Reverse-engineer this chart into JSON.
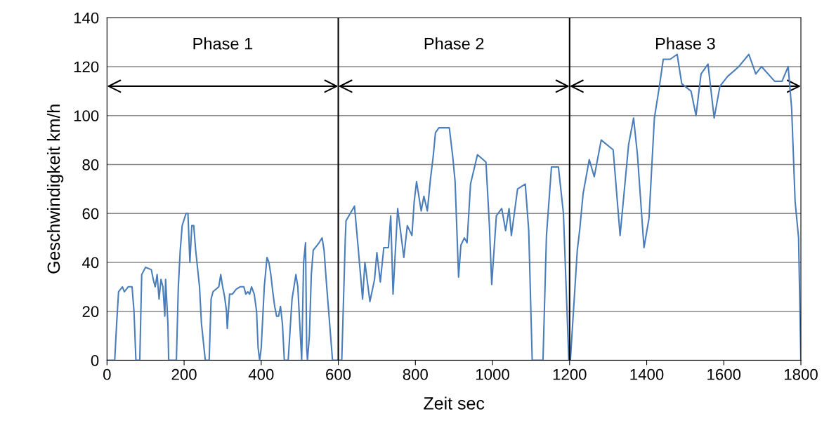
{
  "chart_data": {
    "type": "line",
    "xlabel": "Zeit sec",
    "ylabel": "Geschwindigkeit km/h",
    "xlim": [
      0,
      1800
    ],
    "xticks": [
      0,
      200,
      400,
      600,
      800,
      1000,
      1200,
      1400,
      1600,
      1800
    ],
    "ylim": [
      0,
      140
    ],
    "yticks": [
      0,
      20,
      40,
      60,
      80,
      100,
      120,
      140
    ],
    "grid": "y",
    "ref_lines": [
      {
        "axis": "x",
        "value": 600,
        "color": "#000000"
      },
      {
        "axis": "x",
        "value": 1200,
        "color": "#000000"
      }
    ],
    "annotations": [
      "Phase 1",
      "Phase 2",
      "Phase 3"
    ],
    "series": [
      {
        "color": "#4a7ebb",
        "x": [
          0,
          20,
          25,
          30,
          40,
          45,
          55,
          65,
          70,
          75,
          85,
          90,
          100,
          115,
          120,
          125,
          130,
          135,
          140,
          145,
          150,
          152,
          158,
          160,
          180,
          185,
          190,
          195,
          205,
          210,
          215,
          220,
          225,
          230,
          240,
          245,
          255,
          265,
          270,
          275,
          290,
          295,
          300,
          305,
          310,
          312,
          318,
          325,
          335,
          345,
          355,
          360,
          365,
          370,
          375,
          382,
          388,
          392,
          396,
          400,
          408,
          415,
          420,
          425,
          430,
          435,
          440,
          445,
          450,
          455,
          460,
          470,
          480,
          485,
          490,
          495,
          500,
          505,
          510,
          515,
          518,
          520,
          525,
          530,
          535,
          540,
          550,
          558,
          563,
          570,
          575,
          585,
          600,
          609,
          618,
          620,
          642,
          651,
          657,
          663,
          669,
          682,
          694,
          700,
          709,
          718,
          730,
          736,
          742,
          754,
          770,
          779,
          791,
          797,
          803,
          815,
          822,
          831,
          839,
          846,
          852,
          861,
          888,
          897,
          903,
          912,
          918,
          927,
          934,
          943,
          961,
          983,
          992,
          998,
          1010,
          1024,
          1034,
          1043,
          1049,
          1065,
          1085,
          1094,
          1103,
          1131,
          1140,
          1153,
          1171,
          1184,
          1198,
          1202,
          1220,
          1226,
          1235,
          1251,
          1264,
          1282,
          1313,
          1331,
          1353,
          1366,
          1376,
          1393,
          1406,
          1420,
          1433,
          1443,
          1461,
          1479,
          1491,
          1515,
          1528,
          1541,
          1559,
          1575,
          1590,
          1610,
          1639,
          1665,
          1683,
          1698,
          1732,
          1751,
          1767,
          1776,
          1785,
          1794,
          1800
        ],
        "values": [
          0,
          0,
          15,
          28,
          30,
          28,
          30,
          30,
          20,
          0,
          0,
          35,
          38,
          37,
          33,
          30,
          35,
          25,
          33,
          30,
          18,
          33,
          15,
          0,
          0,
          30,
          45,
          55,
          60,
          60,
          40,
          55,
          55,
          45,
          30,
          15,
          0,
          0,
          25,
          28,
          30,
          35,
          30,
          26,
          20,
          13,
          27,
          27,
          29,
          30,
          30,
          27,
          28,
          27,
          30,
          27,
          20,
          5,
          0,
          5,
          30,
          42,
          40,
          35,
          28,
          22,
          18,
          18,
          22,
          15,
          0,
          0,
          25,
          30,
          35,
          30,
          15,
          0,
          40,
          48,
          5,
          0,
          10,
          35,
          45,
          46,
          48,
          50,
          45,
          30,
          20,
          0,
          0,
          0,
          49,
          57,
          63,
          47,
          36,
          25,
          40,
          24,
          33,
          44,
          32,
          46,
          46,
          59,
          27,
          62,
          42,
          55,
          51,
          65,
          73,
          61,
          67,
          61,
          74,
          83,
          93,
          95,
          95,
          83,
          73,
          34,
          47,
          50,
          48,
          72,
          84,
          81,
          55,
          31,
          59,
          62,
          53,
          62,
          51,
          70,
          72,
          53,
          0,
          0,
          51,
          79,
          79,
          60,
          0,
          0,
          45,
          53,
          68,
          82,
          75,
          90,
          86,
          51,
          88,
          99,
          84,
          46,
          58,
          99,
          112,
          123,
          123,
          125,
          113,
          110,
          100,
          117,
          121,
          99,
          112,
          116,
          120,
          125,
          117,
          120,
          114,
          114,
          120,
          103,
          65,
          50,
          0
        ]
      }
    ]
  }
}
